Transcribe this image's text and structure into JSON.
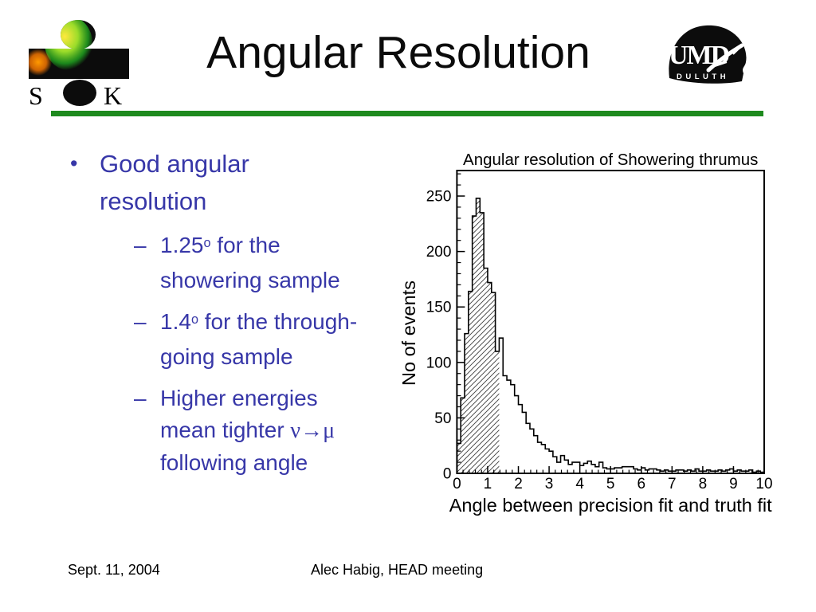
{
  "slide": {
    "title": "Angular Resolution",
    "footer_left": "Sept. 11, 2004",
    "footer_center": "Alec Habig, HEAD meeting"
  },
  "logos": {
    "sk_left_letter": "S",
    "sk_right_letter": "K",
    "umd_text": "UMD",
    "umd_subtext": "DULUTH"
  },
  "colors": {
    "bullet_text": "#3737a8",
    "rule_green": "#1e8a1e",
    "ink": "#000000"
  },
  "bullets": {
    "bullet_char": "•",
    "dash_char": "–",
    "level1": "Good angular resolution",
    "items": [
      {
        "segments": [
          {
            "text": "1.25"
          },
          {
            "text": "o",
            "sup": true
          },
          {
            "text": " for the showering sample"
          }
        ]
      },
      {
        "segments": [
          {
            "text": "1.4"
          },
          {
            "text": "o",
            "sup": true
          },
          {
            "text": " for the through-going sample"
          }
        ]
      },
      {
        "segments": [
          {
            "text": "Higher energies mean tighter "
          },
          {
            "text": "ν→μ",
            "symbol": true
          },
          {
            "text": " following angle"
          }
        ]
      }
    ]
  },
  "chart_data": {
    "type": "bar",
    "subtype": "histogram",
    "title": "Angular resolution of  Showering thrumus",
    "xlabel": "Angle between precision fit and truth fit",
    "ylabel": "No of events",
    "xlim": [
      0,
      10
    ],
    "ylim": [
      0,
      273
    ],
    "grid": false,
    "legend": null,
    "x_major_ticks": [
      0,
      1,
      2,
      3,
      4,
      5,
      6,
      7,
      8,
      9,
      10
    ],
    "x_minor_step": 0.2,
    "y_major_ticks": [
      0,
      50,
      100,
      150,
      200,
      250
    ],
    "y_minor_step": 10,
    "bin_start": 0,
    "bin_width": 0.125,
    "hatch_end_x": 1.375,
    "values": [
      27,
      68,
      126,
      164,
      232,
      248,
      235,
      185,
      172,
      163,
      110,
      122,
      88,
      84,
      80,
      70,
      62,
      55,
      45,
      40,
      34,
      28,
      26,
      22,
      20,
      15,
      10,
      16,
      12,
      8,
      10,
      10,
      7,
      9,
      11,
      8,
      6,
      10,
      5,
      4,
      4,
      5,
      5,
      6,
      6,
      6,
      4,
      3,
      5,
      3,
      4,
      4,
      3,
      2,
      3,
      2,
      2,
      3,
      3,
      2,
      3,
      2,
      4,
      2,
      2,
      3,
      2,
      2,
      3,
      2,
      3,
      4,
      2,
      3,
      2,
      2,
      3,
      1,
      2,
      1
    ]
  }
}
